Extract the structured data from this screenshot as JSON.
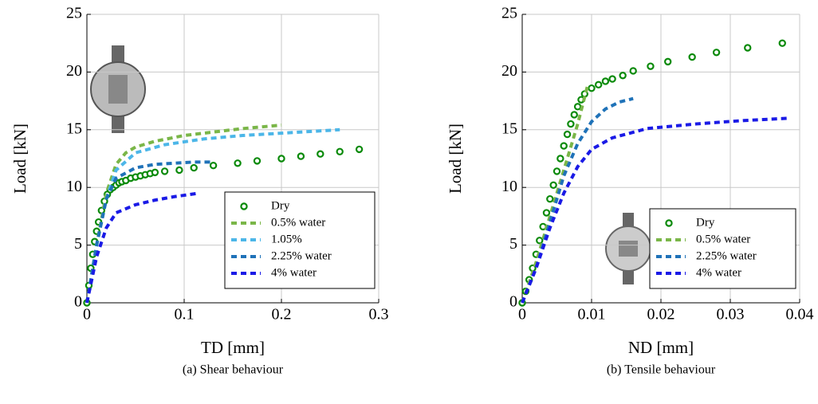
{
  "chart_data": [
    {
      "type": "line",
      "caption": "(a) Shear behaviour",
      "xlabel": "TD [mm]",
      "ylabel": "Load [kN]",
      "xlim": [
        0,
        0.3
      ],
      "xticks": [
        0,
        0.1,
        0.2,
        0.3
      ],
      "ylim": [
        0,
        25
      ],
      "yticks": [
        0,
        5,
        10,
        15,
        20,
        25
      ],
      "grid": true,
      "legend": "lower right",
      "series": [
        {
          "name": "Dry",
          "color": "#0a8a0a",
          "style": "markers",
          "x": [
            0,
            0.002,
            0.004,
            0.006,
            0.008,
            0.01,
            0.012,
            0.015,
            0.018,
            0.021,
            0.024,
            0.027,
            0.03,
            0.033,
            0.036,
            0.04,
            0.045,
            0.05,
            0.055,
            0.06,
            0.065,
            0.07,
            0.08,
            0.095,
            0.11,
            0.13,
            0.155,
            0.175,
            0.2,
            0.22,
            0.24,
            0.26,
            0.28
          ],
          "values": [
            0,
            1.5,
            3,
            4.2,
            5.3,
            6.2,
            7,
            8,
            8.8,
            9.4,
            9.8,
            10,
            10.2,
            10.4,
            10.5,
            10.6,
            10.8,
            10.9,
            11,
            11.1,
            11.2,
            11.3,
            11.4,
            11.5,
            11.7,
            11.9,
            12.1,
            12.3,
            12.5,
            12.7,
            12.9,
            13.1,
            13.3
          ]
        },
        {
          "name": "0.5% water",
          "color": "#7ab648",
          "style": "dashed",
          "x": [
            0,
            0.01,
            0.02,
            0.03,
            0.04,
            0.05,
            0.07,
            0.1,
            0.13,
            0.16,
            0.2
          ],
          "values": [
            0,
            5,
            9.5,
            12,
            13,
            13.5,
            14,
            14.5,
            14.8,
            15.1,
            15.4
          ]
        },
        {
          "name": "1.05%",
          "color": "#4cb6e8",
          "style": "dashed",
          "x": [
            0,
            0.01,
            0.02,
            0.03,
            0.05,
            0.08,
            0.12,
            0.16,
            0.2,
            0.26
          ],
          "values": [
            0,
            5,
            9,
            11.5,
            13,
            13.7,
            14.2,
            14.5,
            14.7,
            15
          ]
        },
        {
          "name": "2.25% water",
          "color": "#1f72b8",
          "style": "dashed",
          "x": [
            0,
            0.01,
            0.02,
            0.03,
            0.05,
            0.07,
            0.09,
            0.11,
            0.13
          ],
          "values": [
            0,
            5,
            9,
            10.8,
            11.7,
            12,
            12.1,
            12.2,
            12.2
          ]
        },
        {
          "name": "4% water",
          "color": "#1a1ae6",
          "style": "dashed",
          "x": [
            0,
            0.01,
            0.02,
            0.03,
            0.05,
            0.07,
            0.09,
            0.115
          ],
          "values": [
            0,
            4,
            6.5,
            7.8,
            8.5,
            8.9,
            9.2,
            9.5
          ]
        }
      ]
    },
    {
      "type": "line",
      "caption": "(b) Tensile behaviour",
      "xlabel": "ND [mm]",
      "ylabel": "Load [kN]",
      "xlim": [
        0,
        0.04
      ],
      "xticks": [
        0,
        0.01,
        0.02,
        0.03,
        0.04
      ],
      "ylim": [
        0,
        25
      ],
      "yticks": [
        0,
        5,
        10,
        15,
        20,
        25
      ],
      "grid": true,
      "legend": "lower right",
      "series": [
        {
          "name": "Dry",
          "color": "#0a8a0a",
          "style": "markers",
          "x": [
            0,
            0.0005,
            0.001,
            0.0015,
            0.002,
            0.0025,
            0.003,
            0.0035,
            0.004,
            0.0045,
            0.005,
            0.0055,
            0.006,
            0.0065,
            0.007,
            0.0075,
            0.008,
            0.0085,
            0.009,
            0.01,
            0.011,
            0.012,
            0.013,
            0.0145,
            0.016,
            0.0185,
            0.021,
            0.0245,
            0.028,
            0.0325,
            0.0375
          ],
          "values": [
            0,
            1,
            2,
            3,
            4.2,
            5.4,
            6.6,
            7.8,
            9,
            10.2,
            11.4,
            12.5,
            13.6,
            14.6,
            15.5,
            16.3,
            17,
            17.6,
            18.1,
            18.6,
            18.9,
            19.2,
            19.4,
            19.7,
            20.1,
            20.5,
            20.9,
            21.3,
            21.7,
            22.1,
            22.5
          ]
        },
        {
          "name": "0.5% water",
          "color": "#7ab648",
          "style": "dashed",
          "x": [
            0,
            0.002,
            0.004,
            0.006,
            0.008,
            0.0095
          ],
          "values": [
            0,
            3.5,
            7.5,
            11.5,
            15.5,
            19
          ]
        },
        {
          "name": "2.25% water",
          "color": "#1f72b8",
          "style": "dashed",
          "x": [
            0,
            0.002,
            0.004,
            0.006,
            0.008,
            0.01,
            0.012,
            0.014,
            0.016
          ],
          "values": [
            0,
            3,
            7,
            11,
            13.8,
            15.7,
            16.8,
            17.4,
            17.7
          ]
        },
        {
          "name": "4% water",
          "color": "#1a1ae6",
          "style": "dashed",
          "x": [
            0,
            0.002,
            0.004,
            0.006,
            0.008,
            0.01,
            0.013,
            0.018,
            0.025,
            0.032,
            0.0385
          ],
          "values": [
            0,
            3,
            6.5,
            9.5,
            11.8,
            13.3,
            14.3,
            15.1,
            15.5,
            15.8,
            16
          ]
        }
      ]
    }
  ]
}
